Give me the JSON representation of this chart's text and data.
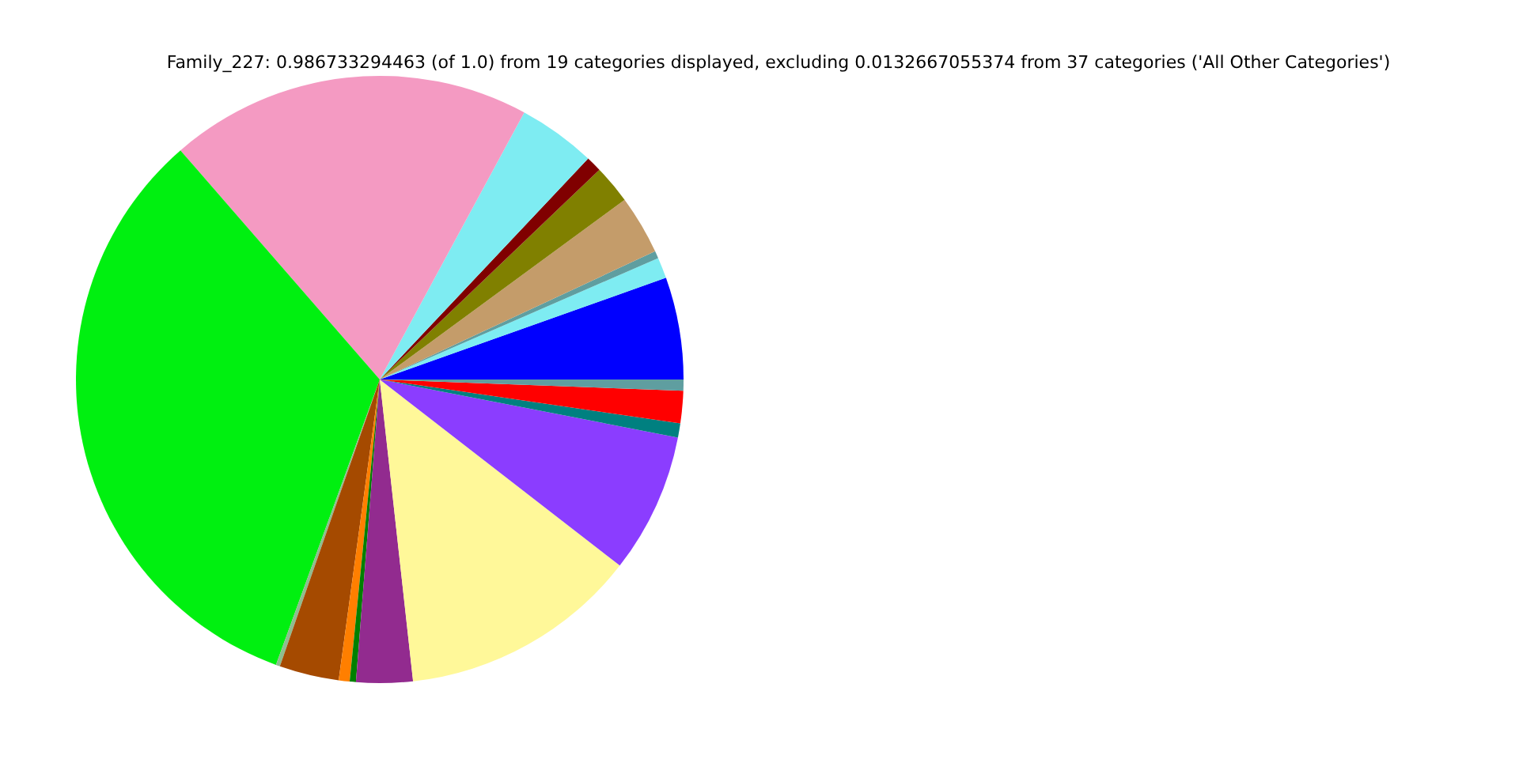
{
  "chart_data": {
    "type": "pie",
    "title": "Family_227: 0.986733294463 (of 1.0) from 19 categories displayed, excluding 0.0132667055374 from 37 categories ('All Other Categories')",
    "categories": [
      null,
      null,
      null,
      null,
      null,
      null,
      null,
      null,
      null,
      null,
      null,
      null,
      null,
      null,
      null,
      null,
      null,
      null,
      null
    ],
    "values": [
      5.44,
      1.11,
      0.39,
      3.14,
      2.06,
      0.83,
      4.14,
      19.28,
      33.06,
      0.22,
      3.17,
      0.58,
      0.33,
      3.0,
      12.75,
      7.44,
      0.75,
      1.72,
      0.59
    ],
    "colors": [
      "#0000ff",
      "#7eecf2",
      "#5f9ea0",
      "#c49c6a",
      "#808000",
      "#800000",
      "#7eecf2",
      "#f49ac2",
      "#00f010",
      "#8fbc8f",
      "#a54a00",
      "#ff7f00",
      "#008000",
      "#922b8f",
      "#fff899",
      "#8b3dff",
      "#008080",
      "#ff0000",
      "#5f9ea0"
    ]
  }
}
